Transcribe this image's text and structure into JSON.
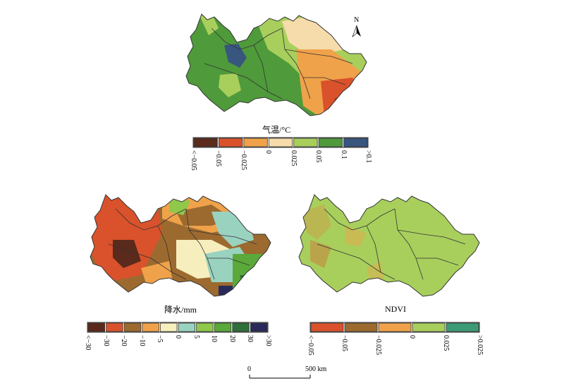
{
  "north_arrow": {
    "label": "N"
  },
  "maps": {
    "temperature": {
      "title": "气温/°C",
      "legend": {
        "colors": [
          "#5a2a1c",
          "#d9522b",
          "#f0a24a",
          "#f6dcaa",
          "#a8cf5c",
          "#4f9a3b",
          "#39567f"
        ],
        "ticks": [
          "<−0.05",
          "−0.05",
          "−0.025",
          "0",
          "0.025",
          "0.05",
          "0.1",
          ">0.1"
        ]
      }
    },
    "precipitation": {
      "title": "降水/mm",
      "legend": {
        "colors": [
          "#5a2a1c",
          "#d9522b",
          "#9c6a2f",
          "#f0a24a",
          "#f6eebc",
          "#9ad2c0",
          "#8fc84a",
          "#5aa93a",
          "#2f6f3a",
          "#2a2a5a"
        ],
        "ticks": [
          "<−30",
          "−30",
          "−20",
          "−10",
          "−5",
          "0",
          "5",
          "10",
          "20",
          "30",
          ">30"
        ]
      }
    },
    "ndvi": {
      "title": "NDVI",
      "legend": {
        "colors": [
          "#d9522b",
          "#9c6a2f",
          "#f0a24a",
          "#a8cf5c",
          "#3d9a77"
        ],
        "ticks": [
          "<−0.05",
          "−0.05",
          "−0.025",
          "0",
          "0.025",
          ">0.025"
        ]
      }
    }
  },
  "scale_bar": {
    "start_label": "0",
    "end_label": "500 km"
  }
}
